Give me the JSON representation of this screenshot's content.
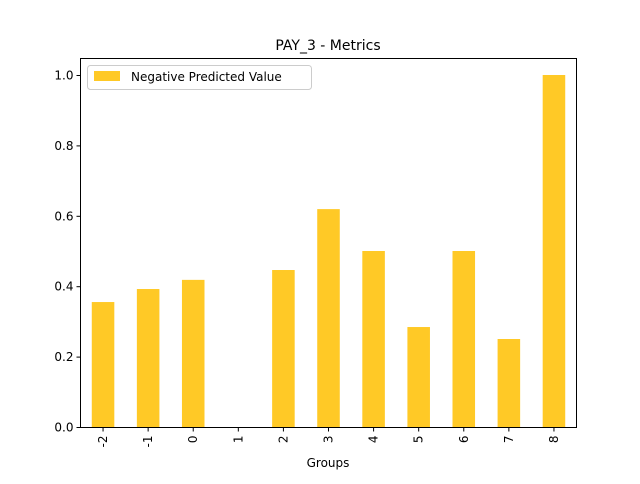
{
  "chart_data": {
    "type": "bar",
    "title": "PAY_3 - Metrics",
    "xlabel": "Groups",
    "ylabel": "",
    "categories": [
      "-2",
      "-1",
      "0",
      "1",
      "2",
      "3",
      "4",
      "5",
      "6",
      "7",
      "8"
    ],
    "series": [
      {
        "name": "Negative Predicted Value",
        "values": [
          0.355,
          0.392,
          0.418,
          0.0,
          0.446,
          0.619,
          0.5,
          0.284,
          0.5,
          0.25,
          1.0
        ],
        "color": "#ffc926"
      }
    ],
    "ylim": [
      0,
      1.05
    ],
    "yticks": [
      "0.0",
      "0.2",
      "0.4",
      "0.6",
      "0.8",
      "1.0"
    ],
    "grid": false,
    "legend": "top-left"
  }
}
